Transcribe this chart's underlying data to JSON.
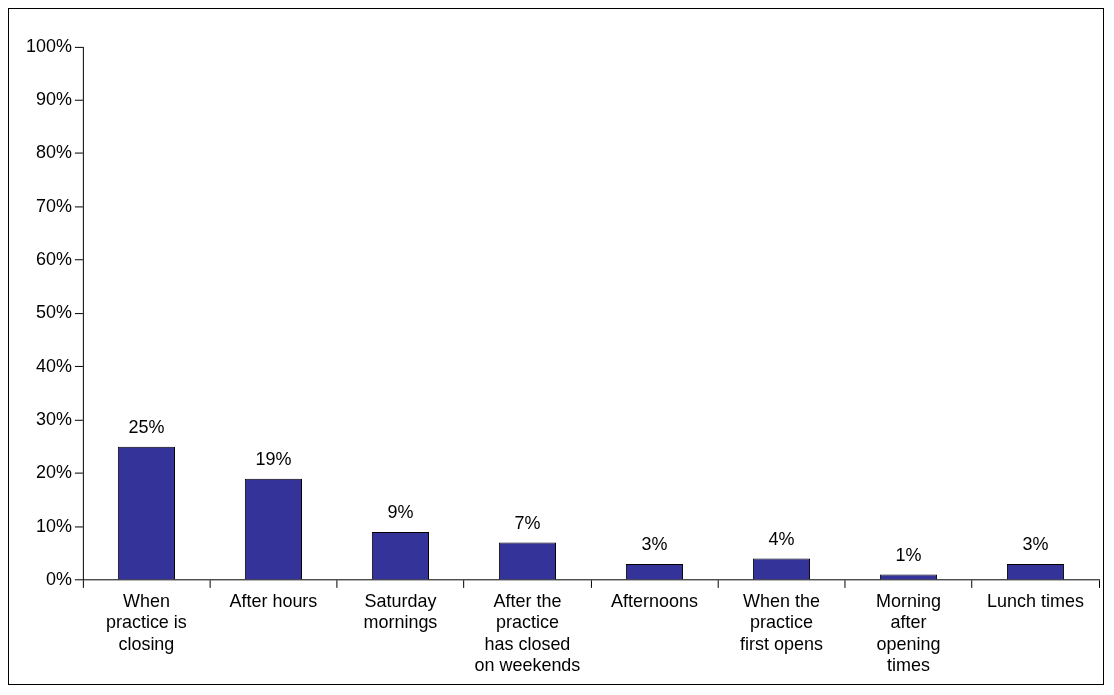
{
  "chart_data": {
    "type": "bar",
    "categories": [
      "When practice is closing",
      "After hours",
      "Saturday mornings",
      "After the practice has closed on weekends",
      "Afternoons",
      "When the practice first opens",
      "Morning after opening times",
      "Lunch times"
    ],
    "values": [
      25,
      19,
      9,
      7,
      3,
      4,
      1,
      3
    ],
    "value_labels": [
      "25%",
      "19%",
      "9%",
      "7%",
      "3%",
      "4%",
      "1%",
      "3%"
    ],
    "color": "#333399",
    "ylim": [
      0,
      100
    ],
    "yticks": [
      {
        "value": 0,
        "label": "0%"
      },
      {
        "value": 10,
        "label": "10%"
      },
      {
        "value": 20,
        "label": "20%"
      },
      {
        "value": 30,
        "label": "30%"
      },
      {
        "value": 40,
        "label": "40%"
      },
      {
        "value": 50,
        "label": "50%"
      },
      {
        "value": 60,
        "label": "60%"
      },
      {
        "value": 70,
        "label": "70%"
      },
      {
        "value": 80,
        "label": "80%"
      },
      {
        "value": 90,
        "label": "90%"
      },
      {
        "value": 100,
        "label": "100%"
      }
    ],
    "grid": false,
    "legend": false
  }
}
